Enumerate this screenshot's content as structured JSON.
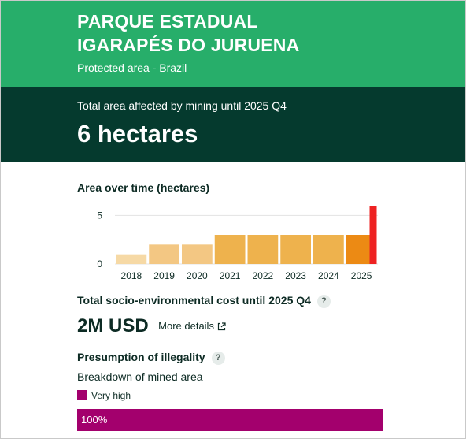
{
  "header": {
    "title_line1": "PARQUE ESTADUAL",
    "title_line2": "IGARAPÉS DO JURUENA",
    "subtitle": "Protected area - Brazil"
  },
  "summary": {
    "label": "Total area affected by mining until 2025 Q4",
    "value": "6 hectares"
  },
  "area_chart": {
    "title": "Area over time (hectares)"
  },
  "chart_data": {
    "type": "bar",
    "title": "Area over time (hectares)",
    "categories": [
      "2018",
      "2019",
      "2020",
      "2021",
      "2022",
      "2023",
      "2024",
      "2025"
    ],
    "values": [
      1,
      2,
      2,
      3,
      3,
      3,
      3,
      3
    ],
    "bar_colors": [
      "#f6d9a5",
      "#f3c783",
      "#f3c783",
      "#eeb24d",
      "#eeb24d",
      "#eeb24d",
      "#eeb24d",
      "#eeb24d"
    ],
    "highlight": {
      "category": "2025",
      "segments": [
        {
          "value": 3,
          "color": "#ec8a14"
        },
        {
          "value": 6,
          "color": "#ee2222"
        }
      ]
    },
    "yticks": [
      "0",
      "5"
    ],
    "ylim": [
      0,
      6
    ],
    "grid": true,
    "xlabel": "",
    "ylabel": ""
  },
  "cost": {
    "title": "Total socio-environmental cost until 2025 Q4",
    "help": "?",
    "value": "2M USD",
    "link_label": "More details"
  },
  "illegality": {
    "title": "Presumption of illegality",
    "help": "?",
    "breakdown_label": "Breakdown of mined area",
    "legend_label": "Very high",
    "legend_color": "#a3006d",
    "bar_percent": 100,
    "bar_label": "100%"
  }
}
